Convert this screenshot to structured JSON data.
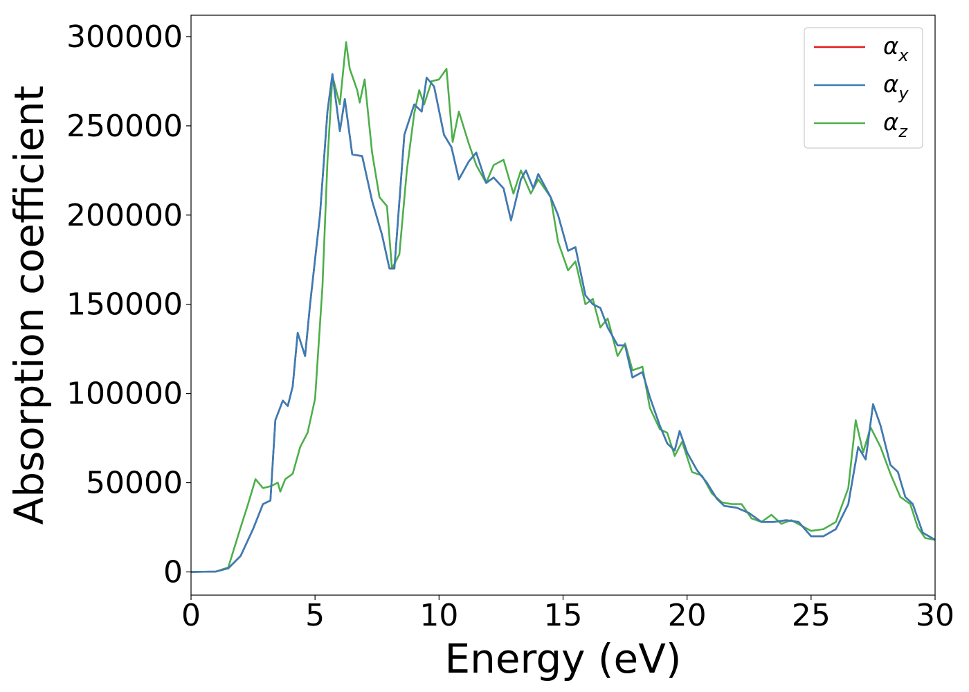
{
  "chart_data": {
    "type": "line",
    "xlabel": "Energy (eV)",
    "ylabel": "Absorption coefficient",
    "xlim": [
      0,
      30
    ],
    "ylim": [
      -13000,
      312000
    ],
    "xticks": [
      "0",
      "5",
      "10",
      "15",
      "20",
      "25",
      "30"
    ],
    "yticks": [
      "0",
      "50000",
      "100000",
      "150000",
      "200000",
      "250000",
      "300000"
    ],
    "grid": false,
    "legend_position": "top-right",
    "series": [
      {
        "name": "α",
        "subscript": "x",
        "color": "#e41a1c",
        "points": [
          [
            0,
            0
          ],
          [
            1,
            200
          ],
          [
            1.5,
            2000
          ],
          [
            2,
            9000
          ],
          [
            2.5,
            24000
          ],
          [
            2.9,
            38000
          ],
          [
            3.2,
            40000
          ],
          [
            3.4,
            85000
          ],
          [
            3.7,
            96000
          ],
          [
            3.9,
            93000
          ],
          [
            4.1,
            104000
          ],
          [
            4.3,
            134000
          ],
          [
            4.6,
            121000
          ],
          [
            4.8,
            150000
          ],
          [
            5.2,
            200000
          ],
          [
            5.5,
            258000
          ],
          [
            5.7,
            279000
          ],
          [
            6.0,
            247000
          ],
          [
            6.2,
            265000
          ],
          [
            6.5,
            234000
          ],
          [
            6.9,
            233000
          ],
          [
            7.3,
            208000
          ],
          [
            7.7,
            189000
          ],
          [
            8.0,
            170000
          ],
          [
            8.2,
            170000
          ],
          [
            8.6,
            245000
          ],
          [
            9.0,
            262000
          ],
          [
            9.3,
            258000
          ],
          [
            9.5,
            277000
          ],
          [
            9.8,
            272000
          ],
          [
            10.2,
            245000
          ],
          [
            10.5,
            238000
          ],
          [
            10.8,
            220000
          ],
          [
            11.2,
            230000
          ],
          [
            11.5,
            235000
          ],
          [
            11.9,
            218000
          ],
          [
            12.2,
            221000
          ],
          [
            12.6,
            215000
          ],
          [
            12.9,
            197000
          ],
          [
            13.3,
            220000
          ],
          [
            13.5,
            225000
          ],
          [
            13.8,
            215000
          ],
          [
            14.0,
            223000
          ],
          [
            14.5,
            210000
          ],
          [
            14.8,
            200000
          ],
          [
            15.2,
            180000
          ],
          [
            15.5,
            182000
          ],
          [
            15.9,
            155000
          ],
          [
            16.2,
            150000
          ],
          [
            16.5,
            148000
          ],
          [
            16.8,
            137000
          ],
          [
            17.2,
            127000
          ],
          [
            17.5,
            127000
          ],
          [
            17.8,
            109000
          ],
          [
            18.2,
            112000
          ],
          [
            18.5,
            98000
          ],
          [
            18.9,
            82000
          ],
          [
            19.2,
            72000
          ],
          [
            19.5,
            68000
          ],
          [
            19.7,
            79000
          ],
          [
            20.0,
            67000
          ],
          [
            20.4,
            57000
          ],
          [
            20.8,
            50000
          ],
          [
            21.2,
            41000
          ],
          [
            21.5,
            37000
          ],
          [
            22.0,
            36000
          ],
          [
            22.5,
            33000
          ],
          [
            23.0,
            28000
          ],
          [
            23.5,
            28000
          ],
          [
            24.0,
            29000
          ],
          [
            24.5,
            28000
          ],
          [
            25.0,
            20000
          ],
          [
            25.5,
            20000
          ],
          [
            26.0,
            24000
          ],
          [
            26.5,
            38000
          ],
          [
            26.9,
            70000
          ],
          [
            27.2,
            63000
          ],
          [
            27.5,
            94000
          ],
          [
            27.8,
            82000
          ],
          [
            28.2,
            60000
          ],
          [
            28.5,
            56000
          ],
          [
            28.8,
            42000
          ],
          [
            29.1,
            38000
          ],
          [
            29.5,
            22000
          ],
          [
            30,
            18000
          ]
        ]
      },
      {
        "name": "α",
        "subscript": "y",
        "color": "#377eb8",
        "points": [
          [
            0,
            0
          ],
          [
            1,
            200
          ],
          [
            1.5,
            2000
          ],
          [
            2,
            9000
          ],
          [
            2.5,
            24000
          ],
          [
            2.9,
            38000
          ],
          [
            3.2,
            40000
          ],
          [
            3.4,
            85000
          ],
          [
            3.7,
            96000
          ],
          [
            3.9,
            93000
          ],
          [
            4.1,
            104000
          ],
          [
            4.3,
            134000
          ],
          [
            4.6,
            121000
          ],
          [
            4.8,
            150000
          ],
          [
            5.2,
            200000
          ],
          [
            5.5,
            258000
          ],
          [
            5.7,
            279000
          ],
          [
            6.0,
            247000
          ],
          [
            6.2,
            265000
          ],
          [
            6.5,
            234000
          ],
          [
            6.9,
            233000
          ],
          [
            7.3,
            208000
          ],
          [
            7.7,
            189000
          ],
          [
            8.0,
            170000
          ],
          [
            8.2,
            170000
          ],
          [
            8.6,
            245000
          ],
          [
            9.0,
            262000
          ],
          [
            9.3,
            258000
          ],
          [
            9.5,
            277000
          ],
          [
            9.8,
            272000
          ],
          [
            10.2,
            245000
          ],
          [
            10.5,
            238000
          ],
          [
            10.8,
            220000
          ],
          [
            11.2,
            230000
          ],
          [
            11.5,
            235000
          ],
          [
            11.9,
            218000
          ],
          [
            12.2,
            221000
          ],
          [
            12.6,
            215000
          ],
          [
            12.9,
            197000
          ],
          [
            13.3,
            220000
          ],
          [
            13.5,
            225000
          ],
          [
            13.8,
            215000
          ],
          [
            14.0,
            223000
          ],
          [
            14.5,
            210000
          ],
          [
            14.8,
            200000
          ],
          [
            15.2,
            180000
          ],
          [
            15.5,
            182000
          ],
          [
            15.9,
            155000
          ],
          [
            16.2,
            150000
          ],
          [
            16.5,
            148000
          ],
          [
            16.8,
            137000
          ],
          [
            17.2,
            127000
          ],
          [
            17.5,
            127000
          ],
          [
            17.8,
            109000
          ],
          [
            18.2,
            112000
          ],
          [
            18.5,
            98000
          ],
          [
            18.9,
            82000
          ],
          [
            19.2,
            72000
          ],
          [
            19.5,
            68000
          ],
          [
            19.7,
            79000
          ],
          [
            20.0,
            67000
          ],
          [
            20.4,
            57000
          ],
          [
            20.8,
            50000
          ],
          [
            21.2,
            41000
          ],
          [
            21.5,
            37000
          ],
          [
            22.0,
            36000
          ],
          [
            22.5,
            33000
          ],
          [
            23.0,
            28000
          ],
          [
            23.5,
            28000
          ],
          [
            24.0,
            29000
          ],
          [
            24.5,
            28000
          ],
          [
            25.0,
            20000
          ],
          [
            25.5,
            20000
          ],
          [
            26.0,
            24000
          ],
          [
            26.5,
            38000
          ],
          [
            26.9,
            70000
          ],
          [
            27.2,
            63000
          ],
          [
            27.5,
            94000
          ],
          [
            27.8,
            82000
          ],
          [
            28.2,
            60000
          ],
          [
            28.5,
            56000
          ],
          [
            28.8,
            42000
          ],
          [
            29.1,
            38000
          ],
          [
            29.5,
            22000
          ],
          [
            30,
            18000
          ]
        ]
      },
      {
        "name": "α",
        "subscript": "z",
        "color": "#4daf4a",
        "points": [
          [
            0,
            0
          ],
          [
            1,
            200
          ],
          [
            1.5,
            2500
          ],
          [
            2,
            25000
          ],
          [
            2.3,
            38000
          ],
          [
            2.6,
            52000
          ],
          [
            2.9,
            47000
          ],
          [
            3.2,
            48000
          ],
          [
            3.5,
            50000
          ],
          [
            3.6,
            45000
          ],
          [
            3.8,
            52000
          ],
          [
            4.1,
            55000
          ],
          [
            4.4,
            70000
          ],
          [
            4.7,
            78000
          ],
          [
            5.0,
            97000
          ],
          [
            5.3,
            160000
          ],
          [
            5.5,
            230000
          ],
          [
            5.7,
            278000
          ],
          [
            6.0,
            262000
          ],
          [
            6.25,
            297000
          ],
          [
            6.4,
            282000
          ],
          [
            6.7,
            270000
          ],
          [
            6.8,
            263000
          ],
          [
            7.0,
            276000
          ],
          [
            7.3,
            235000
          ],
          [
            7.6,
            210000
          ],
          [
            7.9,
            205000
          ],
          [
            8.1,
            170000
          ],
          [
            8.4,
            178000
          ],
          [
            8.7,
            225000
          ],
          [
            9.0,
            257000
          ],
          [
            9.2,
            270000
          ],
          [
            9.4,
            262000
          ],
          [
            9.7,
            275000
          ],
          [
            10.0,
            276000
          ],
          [
            10.3,
            282000
          ],
          [
            10.55,
            241000
          ],
          [
            10.8,
            258000
          ],
          [
            11.2,
            240000
          ],
          [
            11.5,
            228000
          ],
          [
            11.9,
            218000
          ],
          [
            12.2,
            228000
          ],
          [
            12.6,
            231000
          ],
          [
            13.0,
            212000
          ],
          [
            13.3,
            225000
          ],
          [
            13.7,
            212000
          ],
          [
            14.0,
            220000
          ],
          [
            14.5,
            210000
          ],
          [
            14.8,
            185000
          ],
          [
            15.2,
            169000
          ],
          [
            15.5,
            174000
          ],
          [
            15.9,
            150000
          ],
          [
            16.2,
            153000
          ],
          [
            16.5,
            137000
          ],
          [
            16.8,
            142000
          ],
          [
            17.2,
            121000
          ],
          [
            17.5,
            128000
          ],
          [
            17.8,
            113000
          ],
          [
            18.2,
            115000
          ],
          [
            18.5,
            92000
          ],
          [
            18.9,
            80000
          ],
          [
            19.2,
            78000
          ],
          [
            19.5,
            65000
          ],
          [
            19.8,
            73000
          ],
          [
            20.2,
            56000
          ],
          [
            20.6,
            54000
          ],
          [
            21.0,
            44000
          ],
          [
            21.4,
            39000
          ],
          [
            21.8,
            38000
          ],
          [
            22.2,
            38000
          ],
          [
            22.6,
            30000
          ],
          [
            23.0,
            28000
          ],
          [
            23.4,
            32000
          ],
          [
            23.8,
            27000
          ],
          [
            24.2,
            29000
          ],
          [
            24.6,
            26000
          ],
          [
            25.0,
            23000
          ],
          [
            25.5,
            24000
          ],
          [
            26.0,
            28000
          ],
          [
            26.5,
            47000
          ],
          [
            26.8,
            85000
          ],
          [
            27.1,
            67000
          ],
          [
            27.4,
            81000
          ],
          [
            27.8,
            70000
          ],
          [
            28.2,
            55000
          ],
          [
            28.6,
            42000
          ],
          [
            29.0,
            38000
          ],
          [
            29.3,
            25000
          ],
          [
            29.6,
            19000
          ],
          [
            30,
            18000
          ]
        ]
      }
    ]
  }
}
